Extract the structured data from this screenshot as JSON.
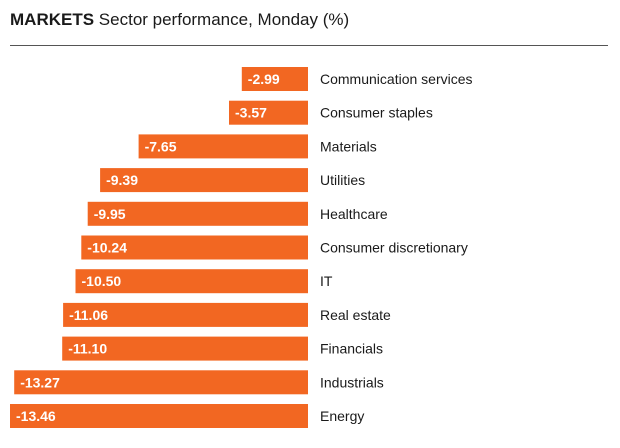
{
  "header": {
    "kicker": "MARKETS",
    "title": "Sector performance, Monday (%)"
  },
  "chart_data": {
    "type": "bar",
    "orientation": "horizontal",
    "bar_color": "#f26722",
    "categories": [
      "Communication services",
      "Consumer staples",
      "Materials",
      "Utilities",
      "Healthcare",
      "Consumer discretionary",
      "IT",
      "Real estate",
      "Financials",
      "Industrials",
      "Energy"
    ],
    "values": [
      -2.99,
      -3.57,
      -7.65,
      -9.39,
      -9.95,
      -10.24,
      -10.5,
      -11.06,
      -11.1,
      -13.27,
      -13.46
    ],
    "value_labels": [
      "-2.99",
      "-3.57",
      "-7.65",
      "-9.39",
      "-9.95",
      "-10.24",
      "-10.50",
      "-11.06",
      "-11.10",
      "-13.27",
      "-13.46"
    ],
    "title": "Sector performance, Monday (%)",
    "xlim": [
      -13.46,
      0
    ]
  }
}
